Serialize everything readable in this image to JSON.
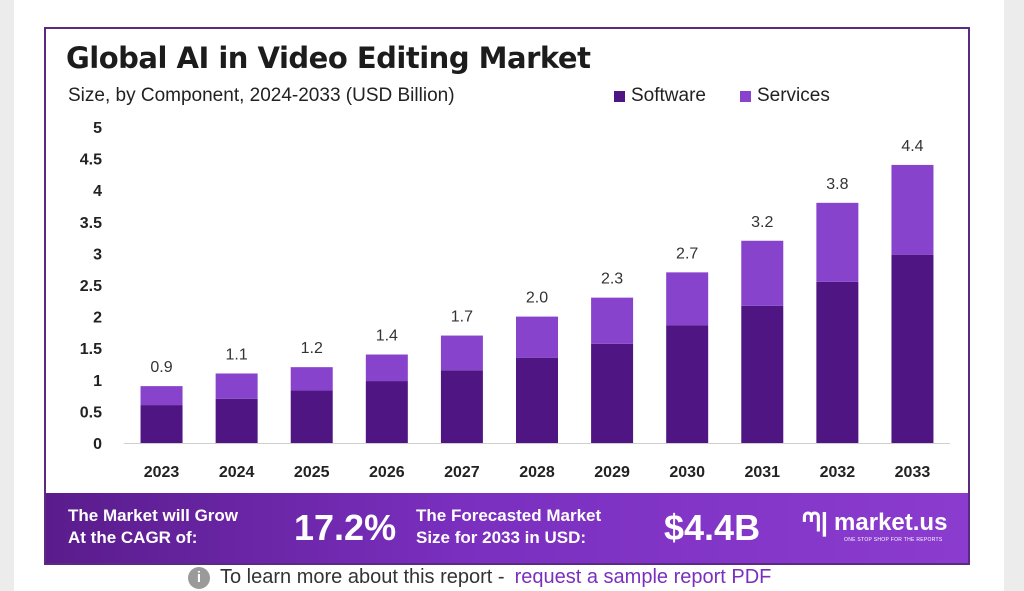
{
  "chart_data": {
    "type": "bar",
    "stacked": true,
    "title": "Global AI in Video Editing Market",
    "subtitle": "Size, by Component, 2024-2033 (USD Billion)",
    "categories": [
      "2023",
      "2024",
      "2025",
      "2026",
      "2027",
      "2028",
      "2029",
      "2030",
      "2031",
      "2032",
      "2033"
    ],
    "series": [
      {
        "name": "Software",
        "color": "#4f1683",
        "values": [
          0.6,
          0.7,
          0.83,
          0.98,
          1.15,
          1.35,
          1.57,
          1.86,
          2.17,
          2.55,
          2.98
        ]
      },
      {
        "name": "Services",
        "color": "#8743cc",
        "values": [
          0.3,
          0.4,
          0.37,
          0.42,
          0.55,
          0.65,
          0.73,
          0.84,
          1.03,
          1.25,
          1.42
        ]
      }
    ],
    "totals": [
      "0.9",
      "1.1",
      "1.2",
      "1.4",
      "1.7",
      "2.0",
      "2.3",
      "2.7",
      "3.2",
      "3.8",
      "4.4"
    ],
    "yticks": [
      "0",
      "0.5",
      "1",
      "1.5",
      "2",
      "2.5",
      "3",
      "3.5",
      "4",
      "4.5",
      "5"
    ],
    "ylim": [
      0,
      5
    ],
    "legend_position": "top-right",
    "grid": false
  },
  "banner": {
    "cagr_label": "The Market will Grow\nAt the CAGR of:",
    "cagr_value": "17.2%",
    "forecast_label": "The Forecasted Market\nSize for 2033 in USD:",
    "forecast_value": "$4.4B",
    "brand": "market.us",
    "brand_tagline": "ONE STOP SHOP FOR THE REPORTS"
  },
  "footer": {
    "text": "To learn more about this report -",
    "link": "request a sample report PDF"
  }
}
